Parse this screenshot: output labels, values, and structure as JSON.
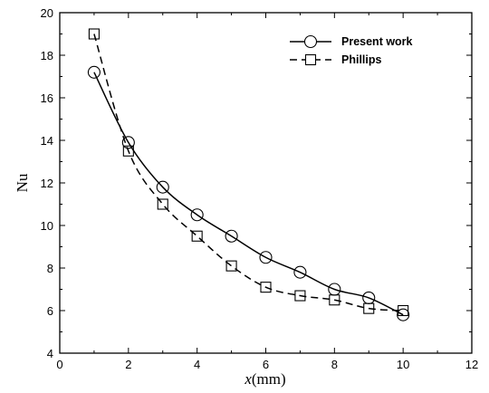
{
  "chart_data": {
    "type": "line",
    "title": "",
    "xlabel_italic": "x",
    "xlabel_rest": "(mm)",
    "ylabel": "Nu",
    "xlim": [
      0,
      12
    ],
    "ylim": [
      4,
      20
    ],
    "xticks": [
      "0",
      "2",
      "4",
      "6",
      "8",
      "10",
      "12"
    ],
    "yticks": [
      "4",
      "6",
      "8",
      "10",
      "12",
      "14",
      "16",
      "18",
      "20"
    ],
    "grid": false,
    "legend_position": "top-right",
    "series": [
      {
        "name": "Present work",
        "marker": "circle",
        "line": "solid",
        "x": [
          1,
          2,
          3,
          4,
          5,
          6,
          7,
          8,
          9,
          10
        ],
        "y": [
          17.2,
          13.9,
          11.8,
          10.5,
          9.5,
          8.5,
          7.8,
          7.0,
          6.6,
          5.8
        ]
      },
      {
        "name": "Phillips",
        "marker": "square",
        "line": "dashed",
        "x": [
          1,
          2,
          3,
          4,
          5,
          6,
          7,
          8,
          9,
          10
        ],
        "y": [
          19.0,
          13.5,
          11.0,
          9.5,
          8.1,
          7.1,
          6.7,
          6.5,
          6.1,
          6.0
        ]
      }
    ]
  }
}
